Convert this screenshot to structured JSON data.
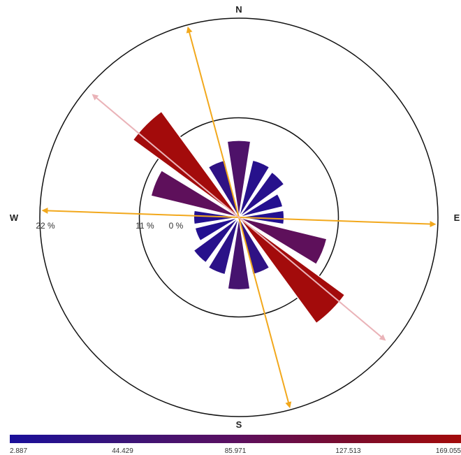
{
  "chart_data": {
    "type": "wind-rose",
    "compass": {
      "north": "N",
      "east": "E",
      "south": "S",
      "west": "W"
    },
    "radial_axis": {
      "unit": "%",
      "ticks": [
        0,
        11,
        22
      ],
      "tick_labels": [
        "0 %",
        "11 %",
        "22 %"
      ],
      "max": 22
    },
    "colorbar": {
      "min": 2.887,
      "max": 169.055,
      "ticks": [
        2.887,
        44.429,
        85.971,
        127.513,
        169.055
      ],
      "tick_labels": [
        "2.887",
        "44.429",
        "85.971",
        "127.513",
        "169.055"
      ],
      "colors": [
        "#1a0f9a",
        "#3a1478",
        "#5b1060",
        "#7a0b2c",
        "#a30b0b"
      ]
    },
    "sectors": [
      {
        "direction": 0,
        "frequency": 8.5,
        "value": 70
      },
      {
        "direction": 22.5,
        "frequency": 6.5,
        "value": 20
      },
      {
        "direction": 45,
        "frequency": 6.2,
        "value": 20
      },
      {
        "direction": 67.5,
        "frequency": 5.0,
        "value": 15
      },
      {
        "direction": 90,
        "frequency": 5.0,
        "value": 15
      },
      {
        "direction": 112.5,
        "frequency": 10.0,
        "value": 90
      },
      {
        "direction": 135,
        "frequency": 14.5,
        "value": 169
      },
      {
        "direction": 157.5,
        "frequency": 6.5,
        "value": 30
      },
      {
        "direction": 180,
        "frequency": 8.0,
        "value": 60
      },
      {
        "direction": 202.5,
        "frequency": 6.5,
        "value": 25
      },
      {
        "direction": 225,
        "frequency": 6.2,
        "value": 20
      },
      {
        "direction": 247.5,
        "frequency": 5.0,
        "value": 15
      },
      {
        "direction": 270,
        "frequency": 5.0,
        "value": 15
      },
      {
        "direction": 292.5,
        "frequency": 10.0,
        "value": 90
      },
      {
        "direction": 315,
        "frequency": 14.5,
        "value": 169
      },
      {
        "direction": 337.5,
        "frequency": 6.5,
        "value": 30
      }
    ],
    "overlay_arrows": [
      {
        "color": "#f2a81c",
        "directions": [
          345,
          165
        ]
      },
      {
        "color": "#f2a81c",
        "directions": [
          272,
          92
        ]
      },
      {
        "color": "#eab3b8",
        "directions": [
          310,
          130
        ]
      }
    ]
  }
}
